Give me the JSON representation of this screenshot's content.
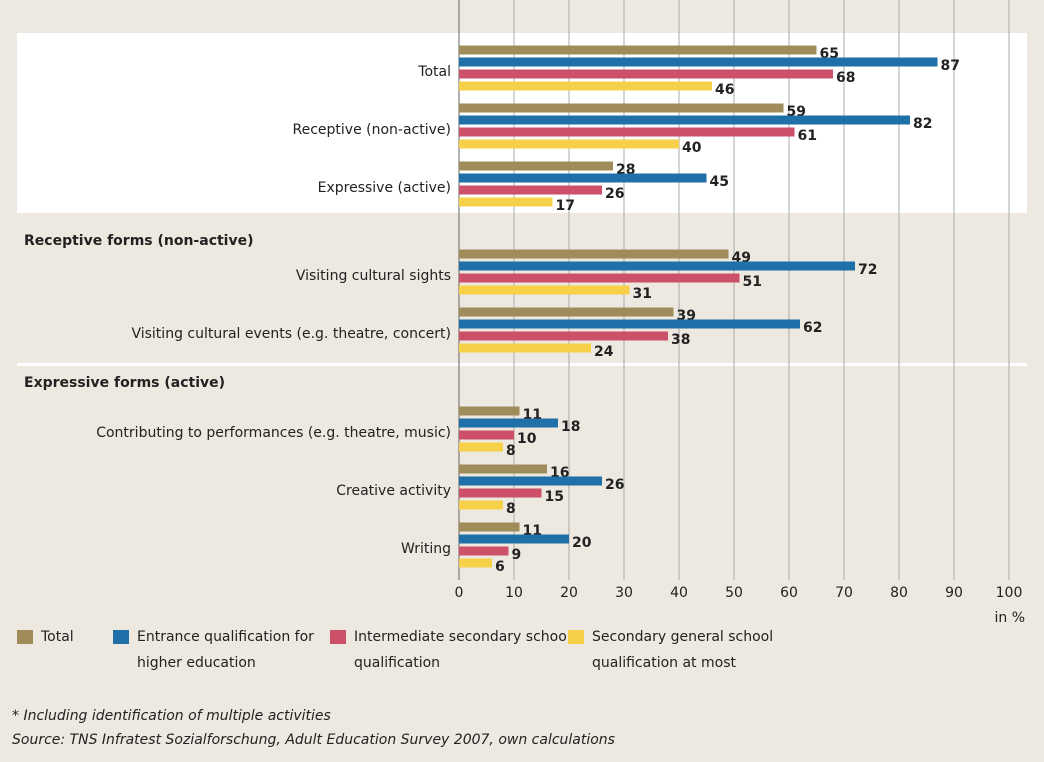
{
  "chart_data": {
    "type": "hbar",
    "categories": [
      "Total",
      "Receptive (non-active)",
      "Expressive (active)",
      "Visiting cultural sights",
      "Visiting cultural events (e.g. theatre, concert)",
      "Contributing to performances (e.g. theatre, music)",
      "Creative activity",
      "Writing"
    ],
    "section_titles": [
      "Receptive forms (non-active)",
      "Expressive forms (active)"
    ],
    "series": [
      {
        "name": "Total",
        "color": "#a08c5b",
        "values": [
          65,
          59,
          28,
          49,
          39,
          11,
          16,
          11
        ]
      },
      {
        "name": "Entrance qualification for higher education",
        "color": "#1f6fa8",
        "values": [
          87,
          82,
          45,
          72,
          62,
          18,
          26,
          20
        ]
      },
      {
        "name": "Intermediate secondary school qualification",
        "color": "#cc5168",
        "values": [
          68,
          61,
          26,
          51,
          38,
          10,
          15,
          9
        ]
      },
      {
        "name": "Secondary general school qualification at most",
        "color": "#f7d04a",
        "values": [
          46,
          40,
          17,
          31,
          24,
          8,
          8,
          6
        ]
      }
    ],
    "xlim": [
      0,
      100
    ],
    "xticks": [
      0,
      10,
      20,
      30,
      40,
      50,
      60,
      70,
      80,
      90,
      100
    ],
    "x_unit": "in %",
    "grid": true,
    "footnotes": [
      "* Including identification of multiple activities",
      "Source: TNS Infratest Sozialforschung, Adult Education Survey 2007, own calculations"
    ]
  }
}
